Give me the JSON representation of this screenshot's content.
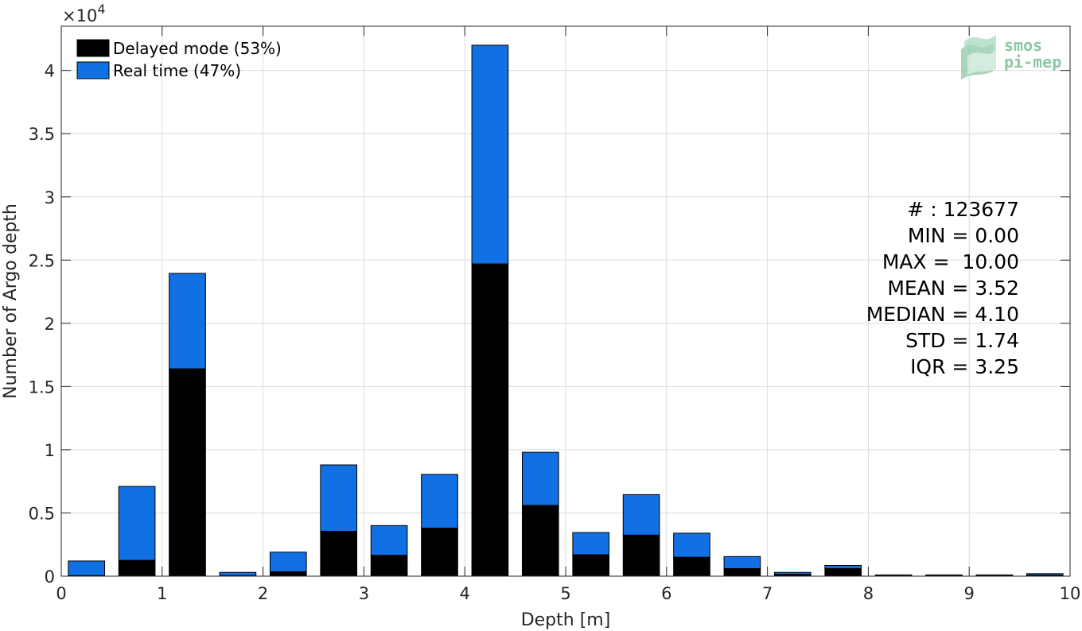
{
  "chart_data": {
    "type": "bar",
    "stacked": true,
    "xlabel": "Depth [m]",
    "ylabel": "Number of Argo depth",
    "y_exponent_label": "×10",
    "y_exponent_power": "4",
    "xlim": [
      0,
      10
    ],
    "ylim": [
      0,
      43500
    ],
    "xticks": [
      0,
      1,
      2,
      3,
      4,
      5,
      6,
      7,
      8,
      9,
      10
    ],
    "yticks": [
      0,
      5000,
      10000,
      15000,
      20000,
      25000,
      30000,
      35000,
      40000
    ],
    "ytick_labels": [
      "0",
      "0.5",
      "1",
      "1.5",
      "2",
      "2.5",
      "3",
      "3.5",
      "4"
    ],
    "grid": true,
    "legend_position": "top-left",
    "bin_width": 0.5,
    "bar_width": 0.36,
    "x": [
      0.25,
      0.75,
      1.25,
      1.75,
      2.25,
      2.75,
      3.25,
      3.75,
      4.25,
      4.75,
      5.25,
      5.75,
      6.25,
      6.75,
      7.25,
      7.75,
      8.25,
      8.75,
      9.25,
      9.75
    ],
    "series": [
      {
        "name": "Delayed mode (53%)",
        "color": "#000000",
        "values": [
          50,
          1250,
          16400,
          50,
          350,
          3550,
          1650,
          3800,
          24700,
          5600,
          1700,
          3250,
          1500,
          600,
          150,
          600,
          30,
          30,
          30,
          80
        ]
      },
      {
        "name": "Real time (47%)",
        "color": "#1170e3",
        "values": [
          1150,
          5850,
          7550,
          250,
          1550,
          5250,
          2350,
          4250,
          17300,
          4200,
          1750,
          3200,
          1900,
          950,
          150,
          250,
          70,
          70,
          70,
          120
        ]
      }
    ],
    "stats": [
      "# : 123677",
      "MIN = 0.00",
      "MAX =  10.00",
      "MEAN = 3.52",
      "MEDIAN = 4.10",
      "STD = 1.74",
      "IQR = 3.25"
    ]
  },
  "logo": {
    "line1": "smos",
    "line2": "pi-mep"
  }
}
